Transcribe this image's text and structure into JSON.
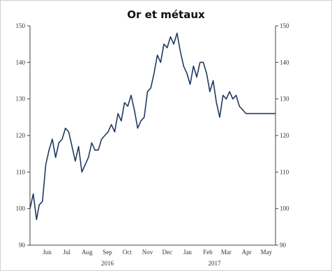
{
  "chart_data": {
    "type": "line",
    "title": "Or et métaux",
    "xlabel": "",
    "ylabel": "",
    "ylim": [
      90,
      150
    ],
    "yticks": [
      90,
      100,
      110,
      120,
      130,
      140,
      150
    ],
    "month_labels": [
      "Jun",
      "Jul",
      "Aug",
      "Sep",
      "Oct",
      "Nov",
      "Dec",
      "Jan",
      "Feb",
      "Mar",
      "Apr",
      "May"
    ],
    "year_labels": [
      "2016",
      "2017"
    ],
    "grid": false,
    "legend": "none",
    "series": [
      {
        "color": "#1f3a5f",
        "x": [
          "2016-05-20",
          "2016-05-25",
          "2016-05-30",
          "2016-06-03",
          "2016-06-08",
          "2016-06-13",
          "2016-06-18",
          "2016-06-23",
          "2016-06-28",
          "2016-07-03",
          "2016-07-08",
          "2016-07-13",
          "2016-07-18",
          "2016-07-23",
          "2016-07-28",
          "2016-08-02",
          "2016-08-07",
          "2016-08-12",
          "2016-08-17",
          "2016-08-22",
          "2016-08-27",
          "2016-09-01",
          "2016-09-06",
          "2016-09-11",
          "2016-09-16",
          "2016-09-21",
          "2016-09-26",
          "2016-10-01",
          "2016-10-06",
          "2016-10-11",
          "2016-10-16",
          "2016-10-21",
          "2016-10-26",
          "2016-10-31",
          "2016-11-05",
          "2016-11-10",
          "2016-11-15",
          "2016-11-20",
          "2016-11-25",
          "2016-11-30",
          "2016-12-05",
          "2016-12-10",
          "2016-12-15",
          "2016-12-20",
          "2016-12-25",
          "2016-12-30",
          "2017-01-04",
          "2017-01-09",
          "2017-01-14",
          "2017-01-19",
          "2017-01-24",
          "2017-01-29",
          "2017-02-03",
          "2017-02-08",
          "2017-02-13",
          "2017-02-18",
          "2017-02-23",
          "2017-02-28",
          "2017-03-05",
          "2017-03-10",
          "2017-03-15",
          "2017-03-20",
          "2017-03-25",
          "2017-03-30",
          "2017-04-04",
          "2017-04-09",
          "2017-04-14",
          "2017-04-19",
          "2017-04-24",
          "2017-04-29",
          "2017-05-04",
          "2017-05-09",
          "2017-05-14",
          "2017-05-19",
          "2017-05-24",
          "2017-05-29"
        ],
        "y": [
          100,
          104,
          97,
          101,
          102,
          112,
          116,
          119,
          114,
          118,
          119,
          122,
          121,
          117,
          113,
          117,
          110,
          112,
          114,
          118,
          116,
          116,
          119,
          120,
          121,
          123,
          121,
          126,
          124,
          129,
          128,
          131,
          127,
          122,
          124,
          125,
          132,
          133,
          137,
          142,
          140,
          145,
          144,
          147,
          145,
          148,
          143,
          139,
          137,
          134,
          139,
          136,
          140,
          140,
          137,
          132,
          135,
          129,
          125,
          131,
          130,
          132,
          130,
          131,
          128,
          127,
          126,
          126,
          126,
          126,
          126,
          126,
          126,
          126,
          126,
          126
        ]
      }
    ]
  }
}
